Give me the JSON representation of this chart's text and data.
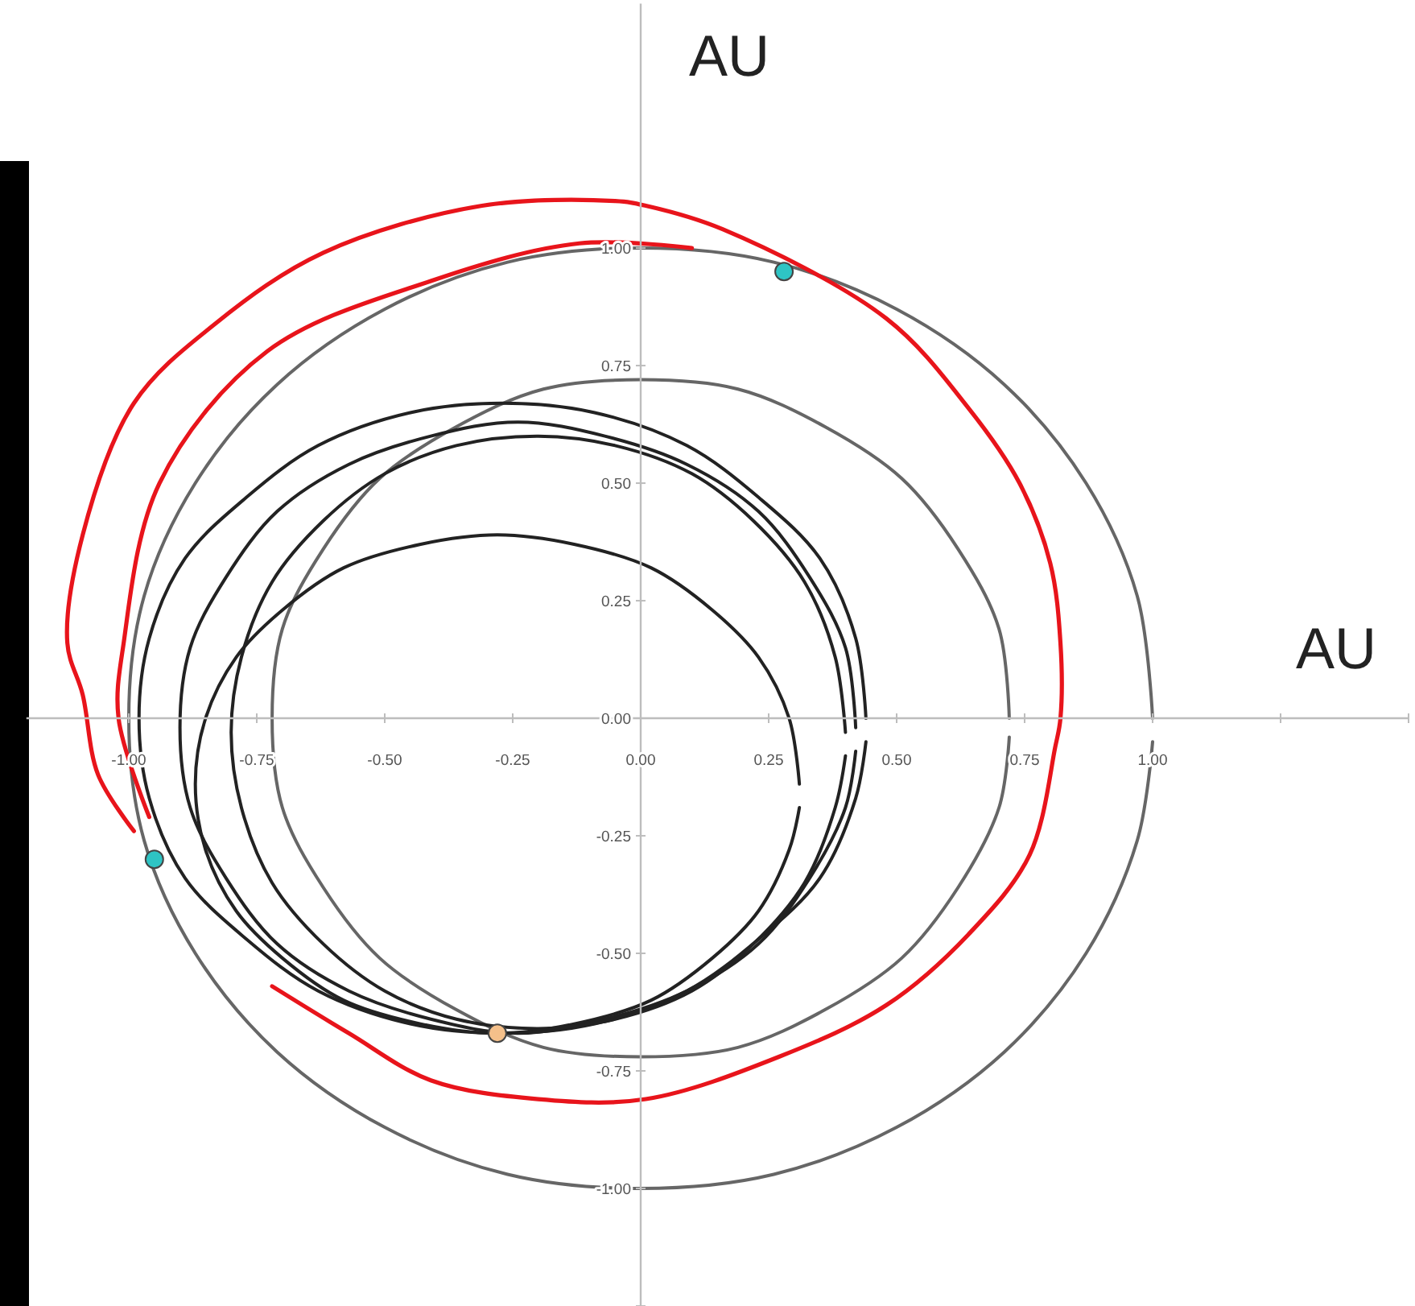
{
  "chart_data": {
    "type": "line",
    "xlabel": "AU",
    "ylabel": "AU",
    "grid": false,
    "xlim": [
      -1.2,
      1.5
    ],
    "ylim": [
      -1.25,
      1.52
    ],
    "xticks": [
      {
        "value": -1,
        "label": "-1.00"
      },
      {
        "value": -0.75,
        "label": "-0.75"
      },
      {
        "value": -0.5,
        "label": "-0.50"
      },
      {
        "value": -0.25,
        "label": "-0.25"
      },
      {
        "value": 0,
        "label": "0.00"
      },
      {
        "value": 0.25,
        "label": "0.25"
      },
      {
        "value": 0.5,
        "label": "0.50"
      },
      {
        "value": 0.75,
        "label": "0.75"
      },
      {
        "value": 1,
        "label": "1.00"
      },
      {
        "value": 1.25,
        "label": null
      },
      {
        "value": 1.5,
        "label": null
      }
    ],
    "yticks": [
      {
        "value": -1.25,
        "label": null
      },
      {
        "value": -1,
        "label": "-1.00"
      },
      {
        "value": -0.75,
        "label": "-0.75"
      },
      {
        "value": -0.5,
        "label": "-0.50"
      },
      {
        "value": -0.25,
        "label": "-0.25"
      },
      {
        "value": 0,
        "label": "0.00"
      },
      {
        "value": 0.25,
        "label": "0.25"
      },
      {
        "value": 0.5,
        "label": "0.50"
      },
      {
        "value": 0.75,
        "label": "0.75"
      },
      {
        "value": 1,
        "label": "1.00"
      }
    ],
    "series": [
      {
        "type": "line",
        "color": "#666666",
        "x": [
          1,
          0.97,
          0.87,
          0.71,
          0.5,
          0.26,
          0,
          -0.26,
          -0.5,
          -0.71,
          -0.87,
          -0.97,
          -1,
          -0.97,
          -0.87,
          -0.71,
          -0.5,
          -0.26,
          0,
          0.26,
          0.5,
          0.71,
          0.87,
          0.97,
          1
        ],
        "values": [
          0,
          0.26,
          0.5,
          0.71,
          0.87,
          0.97,
          1,
          0.97,
          0.87,
          0.71,
          0.5,
          0.26,
          0,
          -0.26,
          -0.5,
          -0.71,
          -0.87,
          -0.97,
          -1,
          -0.97,
          -0.87,
          -0.71,
          -0.5,
          -0.26,
          -0.05
        ]
      },
      {
        "type": "line",
        "color": "#666666",
        "x": [
          0.72,
          0.7,
          0.62,
          0.51,
          0.36,
          0.19,
          0,
          -0.19,
          -0.36,
          -0.51,
          -0.62,
          -0.7,
          -0.72,
          -0.7,
          -0.62,
          -0.51,
          -0.36,
          -0.19,
          0,
          0.19,
          0.36,
          0.51,
          0.62,
          0.7,
          0.72
        ],
        "values": [
          0,
          0.19,
          0.36,
          0.51,
          0.62,
          0.7,
          0.72,
          0.7,
          0.62,
          0.51,
          0.36,
          0.19,
          0,
          -0.19,
          -0.36,
          -0.51,
          -0.62,
          -0.7,
          -0.72,
          -0.7,
          -0.62,
          -0.51,
          -0.36,
          -0.19,
          -0.04
        ]
      },
      {
        "type": "line",
        "color": "#222222",
        "x": [
          0.31,
          0.29,
          0.23,
          0.14,
          0.02,
          -0.13,
          -0.28,
          -0.43,
          -0.58,
          -0.7,
          -0.79,
          -0.85,
          -0.87,
          -0.85,
          -0.79,
          -0.7,
          -0.58,
          -0.43,
          -0.28,
          -0.13,
          0.02,
          0.14,
          0.23,
          0.29,
          0.31
        ],
        "values": [
          -0.14,
          0,
          0.13,
          0.23,
          0.32,
          0.37,
          0.39,
          0.37,
          0.32,
          0.23,
          0.13,
          0,
          -0.14,
          -0.28,
          -0.41,
          -0.51,
          -0.6,
          -0.65,
          -0.67,
          -0.65,
          -0.6,
          -0.51,
          -0.41,
          -0.28,
          -0.19
        ]
      },
      {
        "type": "line",
        "color": "#222222",
        "x": [
          0.44,
          0.42,
          0.35,
          0.23,
          0.09,
          -0.09,
          -0.27,
          -0.45,
          -0.63,
          -0.77,
          -0.89,
          -0.96,
          -0.98,
          -0.96,
          -0.89,
          -0.77,
          -0.63,
          -0.45,
          -0.27,
          -0.09,
          0.09,
          0.23,
          0.35,
          0.42,
          0.44
        ],
        "values": [
          0,
          0.17,
          0.34,
          0.47,
          0.58,
          0.65,
          0.67,
          0.65,
          0.58,
          0.47,
          0.34,
          0.17,
          0,
          -0.17,
          -0.34,
          -0.47,
          -0.58,
          -0.65,
          -0.67,
          -0.65,
          -0.58,
          -0.47,
          -0.34,
          -0.17,
          -0.05
        ]
      },
      {
        "type": "line",
        "color": "#222222",
        "x": [
          0.42,
          0.4,
          0.33,
          0.23,
          0.09,
          -0.07,
          -0.24,
          -0.41,
          -0.57,
          -0.71,
          -0.81,
          -0.88,
          -0.9,
          -0.88,
          -0.81,
          -0.71,
          -0.57,
          -0.41,
          -0.24,
          -0.07,
          0.09,
          0.23,
          0.33,
          0.4,
          0.42
        ],
        "values": [
          -0.02,
          0.15,
          0.3,
          0.44,
          0.54,
          0.6,
          0.63,
          0.6,
          0.54,
          0.44,
          0.3,
          0.15,
          -0.02,
          -0.19,
          -0.34,
          -0.48,
          -0.58,
          -0.64,
          -0.67,
          -0.64,
          -0.58,
          -0.48,
          -0.34,
          -0.19,
          -0.07
        ]
      },
      {
        "type": "line",
        "color": "#222222",
        "x": [
          0.4,
          0.38,
          0.32,
          0.22,
          0.1,
          -0.05,
          -0.2,
          -0.36,
          -0.5,
          -0.62,
          -0.72,
          -0.78,
          -0.8,
          -0.78,
          -0.72,
          -0.62,
          -0.5,
          -0.36,
          -0.2,
          -0.05,
          0.1,
          0.22,
          0.32,
          0.38,
          0.4
        ],
        "values": [
          -0.03,
          0.13,
          0.29,
          0.42,
          0.52,
          0.58,
          0.6,
          0.58,
          0.52,
          0.42,
          0.29,
          0.13,
          -0.03,
          -0.19,
          -0.35,
          -0.48,
          -0.58,
          -0.64,
          -0.66,
          -0.64,
          -0.58,
          -0.48,
          -0.35,
          -0.19,
          -0.08
        ]
      },
      {
        "type": "line",
        "color": "#e8141b",
        "x": [
          -0.96,
          -1.02,
          -1.01,
          -0.94,
          -0.73,
          -0.41,
          -0.12,
          0.1
        ],
        "values": [
          -0.21,
          0,
          0.16,
          0.5,
          0.78,
          0.93,
          1.01,
          1
        ]
      },
      {
        "type": "line",
        "color": "#e8141b",
        "x": [
          -0.99,
          -1.06,
          -1.09,
          -1.12,
          -1.09,
          -0.99,
          -0.83,
          -0.62,
          -0.31,
          -0.05,
          0.01,
          0.16,
          0.48,
          0.64,
          0.74,
          0.8,
          0.82,
          0.82,
          0.81,
          0.76,
          0.64,
          0.48,
          0.27,
          0.01,
          -0.2,
          -0.41,
          -0.57,
          -0.72
        ],
        "values": [
          -0.24,
          -0.12,
          0.05,
          0.16,
          0.39,
          0.67,
          0.84,
          0.99,
          1.09,
          1.1,
          1.09,
          1.04,
          0.85,
          0.66,
          0.5,
          0.33,
          0.16,
          0,
          -0.06,
          -0.29,
          -0.46,
          -0.61,
          -0.72,
          -0.81,
          -0.81,
          -0.77,
          -0.67,
          -0.57
        ]
      },
      {
        "type": "scatter",
        "marker": "circle",
        "color": "#2ec4c4",
        "x": [
          0.28,
          -0.95
        ],
        "values": [
          0.95,
          -0.3
        ]
      },
      {
        "type": "scatter",
        "marker": "circle",
        "color": "#f5c08a",
        "x": [
          -0.28
        ],
        "values": [
          -0.67
        ]
      }
    ]
  }
}
